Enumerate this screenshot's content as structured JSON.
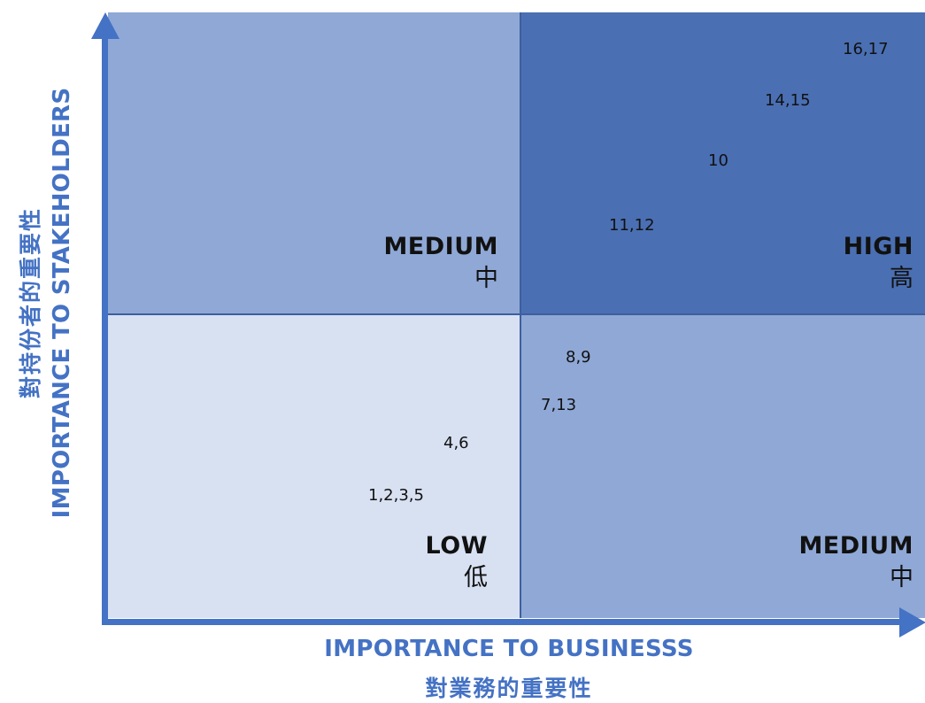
{
  "quadrants": {
    "top_left": {
      "label_en": "MEDIUM",
      "label_zh": "中",
      "color": "#8FA8D6"
    },
    "top_right": {
      "label_en": "HIGH",
      "label_zh": "高",
      "color": "#4A6FB3"
    },
    "bottom_left": {
      "label_en": "LOW",
      "label_zh": "低",
      "color": "#D8E1F2"
    },
    "bottom_right": {
      "label_en": "MEDIUM",
      "label_zh": "中",
      "color": "#8FA8D6"
    }
  },
  "items": [
    {
      "text": "16,17"
    },
    {
      "text": "14,15"
    },
    {
      "text": "10"
    },
    {
      "text": "11,12"
    },
    {
      "text": "8,9"
    },
    {
      "text": "7,13"
    },
    {
      "text": "4,6"
    },
    {
      "text": "1,2,3,5"
    }
  ],
  "axes": {
    "x_title_en": "IMPORTANCE TO BUSINESSS",
    "x_title_zh": "對業務的重要性",
    "y_title_en": "IMPORTANCE TO STAKEHOLDERS",
    "y_title_zh": "對持份者的重要性",
    "color": "#4472C4"
  }
}
